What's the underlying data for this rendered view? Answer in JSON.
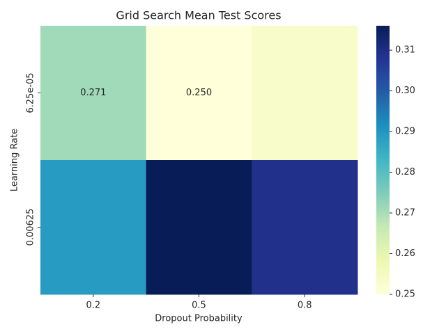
{
  "chart_data": {
    "type": "heatmap",
    "title": "Grid Search Mean Test Scores",
    "x_label": "Dropout Probability",
    "y_label": "Learning Rate",
    "categories": [
      "0.2",
      "0.5",
      "0.8"
    ],
    "y_categories": [
      "6.25e-05",
      "0.00625"
    ],
    "values": [
      [
        0.271,
        0.25,
        0.253
      ],
      [
        0.289,
        0.316,
        0.309
      ]
    ],
    "value_labels": [
      [
        "0.271",
        "0.250",
        null
      ],
      [
        null,
        null,
        null
      ]
    ],
    "clim": [
      0.25,
      0.316
    ],
    "cticks": [
      0.25,
      {
        "value": 0.26,
        "label": "0.26"
      },
      {
        "value": 0.27,
        "label": "0.27"
      },
      {
        "value": 0.28,
        "label": "0.28"
      },
      {
        "value": 0.29,
        "label": "0.29"
      },
      {
        "value": 0.3,
        "label": "0.30"
      },
      {
        "value": 0.31,
        "label": "0.31"
      }
    ],
    "colors": [
      "#ffffd9",
      "#edf8b1",
      "#c7e9b4",
      "#7fcdbb",
      "#41b6c4",
      "#1d91c0",
      "#225ea8",
      "#253494",
      "#081d58"
    ]
  }
}
